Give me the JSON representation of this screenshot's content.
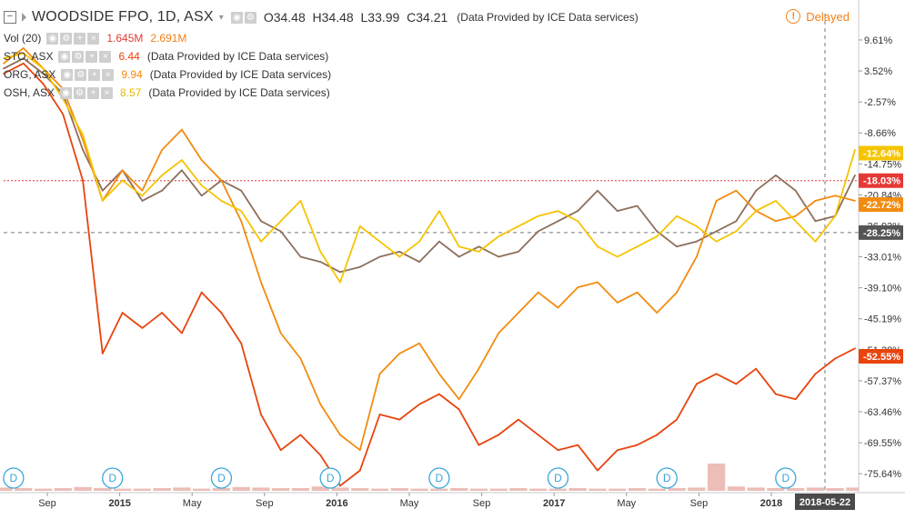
{
  "header": {
    "symbol": "WOODSIDE FPO, 1D, ASX",
    "ohlc": {
      "o_label": "O",
      "o": "34.48",
      "h_label": "H",
      "h": "34.48",
      "l_label": "L",
      "l": "33.99",
      "c_label": "C",
      "c": "34.21"
    },
    "provider_note": "(Data Provided by ICE Data services)",
    "delayed_label": "Delayed",
    "delayed_icon": "exclamation-circle-icon"
  },
  "legend": {
    "volume": {
      "name": "Vol (20)",
      "value1": "1.645M",
      "value2": "2.691M",
      "color1": "#e53935",
      "color2": "#f57f17"
    },
    "compares": [
      {
        "name": "STO, ASX",
        "value": "6.44",
        "color": "#e8440e",
        "note": "(Data Provided by ICE Data services)"
      },
      {
        "name": "ORG, ASX",
        "value": "9.94",
        "color": "#f28c10",
        "note": "(Data Provided by ICE Data services)"
      },
      {
        "name": "OSH, ASX",
        "value": "8.57",
        "color": "#f5c400",
        "note": "(Data Provided by ICE Data services)"
      }
    ]
  },
  "chart_data": {
    "type": "line",
    "y_unit": "percent",
    "ylim": [
      -79,
      13
    ],
    "y_ticks": [
      "9.61%",
      "3.52%",
      "-2.57%",
      "-8.66%",
      "-14.75%",
      "-20.84%",
      "-26.93%",
      "-33.01%",
      "-39.10%",
      "-45.19%",
      "-51.28%",
      "-57.37%",
      "-63.46%",
      "-69.55%",
      "-75.64%"
    ],
    "x_ticks": [
      "Sep",
      "2015",
      "May",
      "Sep",
      "2016",
      "May",
      "Sep",
      "2017",
      "May",
      "Sep",
      "2018"
    ],
    "x_ticks_bold": [
      "2015",
      "2016",
      "2017",
      "2018"
    ],
    "current_date_label": "2018-05-22",
    "price_tags": [
      {
        "text": "-12.64%",
        "value": -12.64,
        "bg": "#f5c400"
      },
      {
        "text": "-18.03%",
        "value": -18.03,
        "bg": "#e53935"
      },
      {
        "text": "-22.72%",
        "value": -22.72,
        "bg": "#f28c10"
      },
      {
        "text": "-28.25%",
        "value": -28.25,
        "bg": "#555555"
      },
      {
        "text": "-52.55%",
        "value": -52.55,
        "bg": "#e8440e"
      }
    ],
    "reference_line": {
      "value": -18.03,
      "color": "#e53935"
    },
    "crosshair_value": -28.25,
    "dividend_marker_label": "D",
    "dividend_markers_x": [
      0.5,
      5.5,
      11,
      16.5,
      22,
      28,
      33.5,
      39.5
    ],
    "x": [
      0,
      1,
      2,
      3,
      4,
      5,
      6,
      7,
      8,
      9,
      10,
      11,
      12,
      13,
      14,
      15,
      16,
      17,
      18,
      19,
      20,
      21,
      22,
      23,
      24,
      25,
      26,
      27,
      28,
      29,
      30,
      31,
      32,
      33,
      34,
      35,
      36,
      37,
      38,
      39,
      40,
      41,
      42,
      43
    ],
    "series": [
      {
        "name": "WOODSIDE FPO",
        "color": "#8d6e5c",
        "values": [
          4,
          6,
          3,
          -1,
          -12,
          -20,
          -16,
          -22,
          -20,
          -16,
          -21,
          -18,
          -20,
          -26,
          -28,
          -33,
          -34,
          -36,
          -35,
          -33,
          -32,
          -34,
          -30,
          -33,
          -31,
          -33,
          -32,
          -28,
          -26,
          -24,
          -20,
          -24,
          -23,
          -28,
          -31,
          -30,
          -28,
          -26,
          -20,
          -17,
          -20,
          -26,
          -25,
          -17
        ]
      },
      {
        "name": "STO, ASX",
        "color": "#e8440e",
        "values": [
          3,
          5,
          1,
          -5,
          -18,
          -52,
          -44,
          -47,
          -44,
          -48,
          -40,
          -44,
          -50,
          -64,
          -71,
          -68,
          -72,
          -78,
          -75,
          -64,
          -65,
          -62,
          -60,
          -63,
          -70,
          -68,
          -65,
          -68,
          -71,
          -70,
          -75,
          -71,
          -70,
          -68,
          -65,
          -58,
          -56,
          -58,
          -55,
          -60,
          -61,
          -56,
          -53,
          -51
        ]
      },
      {
        "name": "ORG, ASX",
        "color": "#f28c10",
        "values": [
          5,
          8,
          4,
          0,
          -10,
          -22,
          -16,
          -20,
          -12,
          -8,
          -14,
          -18,
          -26,
          -38,
          -48,
          -53,
          -62,
          -68,
          -71,
          -56,
          -52,
          -50,
          -56,
          -61,
          -55,
          -48,
          -44,
          -40,
          -43,
          -39,
          -38,
          -42,
          -40,
          -44,
          -40,
          -33,
          -22,
          -20,
          -24,
          -26,
          -25,
          -22,
          -21,
          -22
        ]
      },
      {
        "name": "OSH, ASX",
        "color": "#f5c400",
        "values": [
          6,
          7,
          4,
          -2,
          -9,
          -22,
          -18,
          -21,
          -17,
          -14,
          -19,
          -22,
          -24,
          -30,
          -26,
          -22,
          -32,
          -38,
          -27,
          -30,
          -33,
          -30,
          -24,
          -31,
          -32,
          -29,
          -27,
          -25,
          -24,
          -26,
          -31,
          -33,
          -31,
          -29,
          -25,
          -27,
          -30,
          -28,
          -24,
          -22,
          -26,
          -30,
          -25,
          -12
        ]
      }
    ],
    "volume": {
      "values": [
        0.6,
        0.5,
        0.4,
        0.5,
        0.7,
        0.5,
        0.4,
        0.4,
        0.5,
        0.6,
        0.4,
        0.5,
        0.7,
        0.6,
        0.5,
        0.5,
        0.8,
        0.6,
        0.5,
        0.4,
        0.5,
        0.4,
        0.4,
        0.5,
        0.4,
        0.4,
        0.5,
        0.4,
        0.4,
        0.5,
        0.4,
        0.4,
        0.5,
        0.4,
        0.5,
        0.6,
        5.0,
        0.8,
        0.6,
        0.5,
        0.5,
        0.6,
        0.5,
        0.6
      ],
      "color": "#e7b3aa"
    }
  }
}
